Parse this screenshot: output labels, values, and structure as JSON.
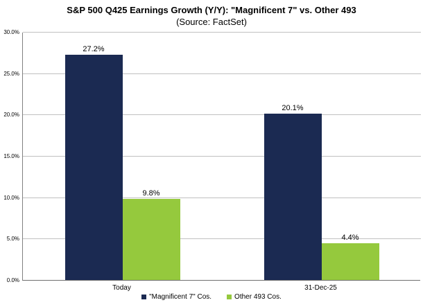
{
  "chart_data": {
    "type": "bar",
    "title": "S&P 500 Q425 Earnings Growth (Y/Y): \"Magnificent 7\" vs. Other 493",
    "subtitle": "(Source: FactSet)",
    "categories": [
      "Today",
      "31-Dec-25"
    ],
    "series": [
      {
        "name": "\"Magnificent 7\" Cos.",
        "color": "#1b2a52",
        "values": [
          27.2,
          20.1
        ],
        "labels": [
          "27.2%",
          "20.1%"
        ]
      },
      {
        "name": "Other 493 Cos.",
        "color": "#95c93d",
        "values": [
          9.8,
          4.4
        ],
        "labels": [
          "9.8%",
          "4.4%"
        ]
      }
    ],
    "xlabel": "",
    "ylabel": "",
    "ylim": [
      0,
      30
    ],
    "ytick_step": 5,
    "ytick_labels": [
      "0.0%",
      "5.0%",
      "10.0%",
      "15.0%",
      "20.0%",
      "25.0%",
      "30.0%"
    ],
    "grid": true,
    "legend_position": "bottom",
    "colors": {
      "gridline": "#c0c0c0",
      "axis": "#808080",
      "background": "#ffffff",
      "text": "#000000"
    }
  }
}
